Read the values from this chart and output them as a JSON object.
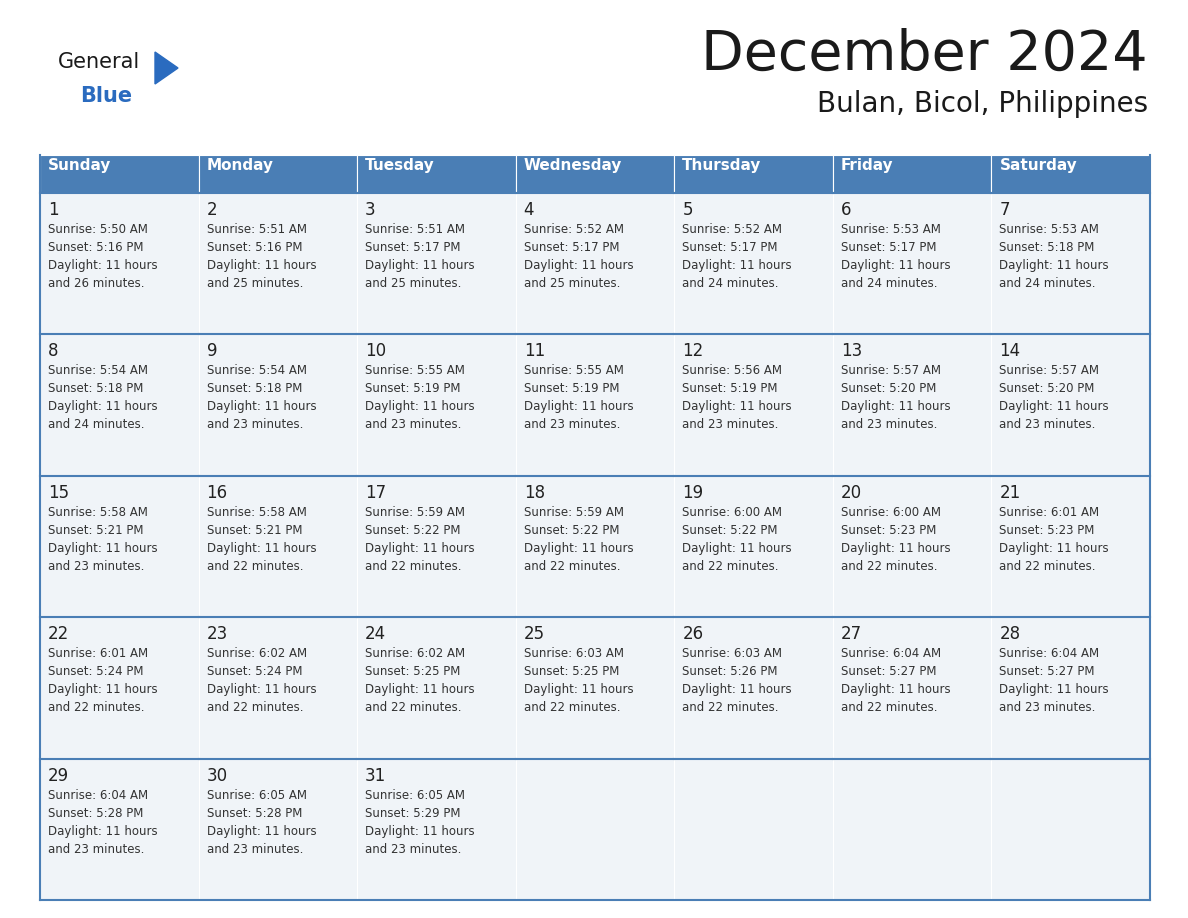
{
  "title": "December 2024",
  "subtitle": "Bulan, Bicol, Philippines",
  "days_of_week": [
    "Sunday",
    "Monday",
    "Tuesday",
    "Wednesday",
    "Thursday",
    "Friday",
    "Saturday"
  ],
  "header_bg": "#4a7eb5",
  "header_text": "#ffffff",
  "cell_bg": "#f0f4f8",
  "cell_bg_white": "#ffffff",
  "border_color": "#4a7eb5",
  "text_color": "#333333",
  "logo_general_color": "#1a1a1a",
  "logo_blue_color": "#2a6bbf",
  "weeks": [
    [
      {
        "day": 1,
        "sunrise": "5:50 AM",
        "sunset": "5:16 PM",
        "daylight": "11 hours and 26 minutes."
      },
      {
        "day": 2,
        "sunrise": "5:51 AM",
        "sunset": "5:16 PM",
        "daylight": "11 hours and 25 minutes."
      },
      {
        "day": 3,
        "sunrise": "5:51 AM",
        "sunset": "5:17 PM",
        "daylight": "11 hours and 25 minutes."
      },
      {
        "day": 4,
        "sunrise": "5:52 AM",
        "sunset": "5:17 PM",
        "daylight": "11 hours and 25 minutes."
      },
      {
        "day": 5,
        "sunrise": "5:52 AM",
        "sunset": "5:17 PM",
        "daylight": "11 hours and 24 minutes."
      },
      {
        "day": 6,
        "sunrise": "5:53 AM",
        "sunset": "5:17 PM",
        "daylight": "11 hours and 24 minutes."
      },
      {
        "day": 7,
        "sunrise": "5:53 AM",
        "sunset": "5:18 PM",
        "daylight": "11 hours and 24 minutes."
      }
    ],
    [
      {
        "day": 8,
        "sunrise": "5:54 AM",
        "sunset": "5:18 PM",
        "daylight": "11 hours and 24 minutes."
      },
      {
        "day": 9,
        "sunrise": "5:54 AM",
        "sunset": "5:18 PM",
        "daylight": "11 hours and 23 minutes."
      },
      {
        "day": 10,
        "sunrise": "5:55 AM",
        "sunset": "5:19 PM",
        "daylight": "11 hours and 23 minutes."
      },
      {
        "day": 11,
        "sunrise": "5:55 AM",
        "sunset": "5:19 PM",
        "daylight": "11 hours and 23 minutes."
      },
      {
        "day": 12,
        "sunrise": "5:56 AM",
        "sunset": "5:19 PM",
        "daylight": "11 hours and 23 minutes."
      },
      {
        "day": 13,
        "sunrise": "5:57 AM",
        "sunset": "5:20 PM",
        "daylight": "11 hours and 23 minutes."
      },
      {
        "day": 14,
        "sunrise": "5:57 AM",
        "sunset": "5:20 PM",
        "daylight": "11 hours and 23 minutes."
      }
    ],
    [
      {
        "day": 15,
        "sunrise": "5:58 AM",
        "sunset": "5:21 PM",
        "daylight": "11 hours and 23 minutes."
      },
      {
        "day": 16,
        "sunrise": "5:58 AM",
        "sunset": "5:21 PM",
        "daylight": "11 hours and 22 minutes."
      },
      {
        "day": 17,
        "sunrise": "5:59 AM",
        "sunset": "5:22 PM",
        "daylight": "11 hours and 22 minutes."
      },
      {
        "day": 18,
        "sunrise": "5:59 AM",
        "sunset": "5:22 PM",
        "daylight": "11 hours and 22 minutes."
      },
      {
        "day": 19,
        "sunrise": "6:00 AM",
        "sunset": "5:22 PM",
        "daylight": "11 hours and 22 minutes."
      },
      {
        "day": 20,
        "sunrise": "6:00 AM",
        "sunset": "5:23 PM",
        "daylight": "11 hours and 22 minutes."
      },
      {
        "day": 21,
        "sunrise": "6:01 AM",
        "sunset": "5:23 PM",
        "daylight": "11 hours and 22 minutes."
      }
    ],
    [
      {
        "day": 22,
        "sunrise": "6:01 AM",
        "sunset": "5:24 PM",
        "daylight": "11 hours and 22 minutes."
      },
      {
        "day": 23,
        "sunrise": "6:02 AM",
        "sunset": "5:24 PM",
        "daylight": "11 hours and 22 minutes."
      },
      {
        "day": 24,
        "sunrise": "6:02 AM",
        "sunset": "5:25 PM",
        "daylight": "11 hours and 22 minutes."
      },
      {
        "day": 25,
        "sunrise": "6:03 AM",
        "sunset": "5:25 PM",
        "daylight": "11 hours and 22 minutes."
      },
      {
        "day": 26,
        "sunrise": "6:03 AM",
        "sunset": "5:26 PM",
        "daylight": "11 hours and 22 minutes."
      },
      {
        "day": 27,
        "sunrise": "6:04 AM",
        "sunset": "5:27 PM",
        "daylight": "11 hours and 22 minutes."
      },
      {
        "day": 28,
        "sunrise": "6:04 AM",
        "sunset": "5:27 PM",
        "daylight": "11 hours and 23 minutes."
      }
    ],
    [
      {
        "day": 29,
        "sunrise": "6:04 AM",
        "sunset": "5:28 PM",
        "daylight": "11 hours and 23 minutes."
      },
      {
        "day": 30,
        "sunrise": "6:05 AM",
        "sunset": "5:28 PM",
        "daylight": "11 hours and 23 minutes."
      },
      {
        "day": 31,
        "sunrise": "6:05 AM",
        "sunset": "5:29 PM",
        "daylight": "11 hours and 23 minutes."
      },
      null,
      null,
      null,
      null
    ]
  ]
}
